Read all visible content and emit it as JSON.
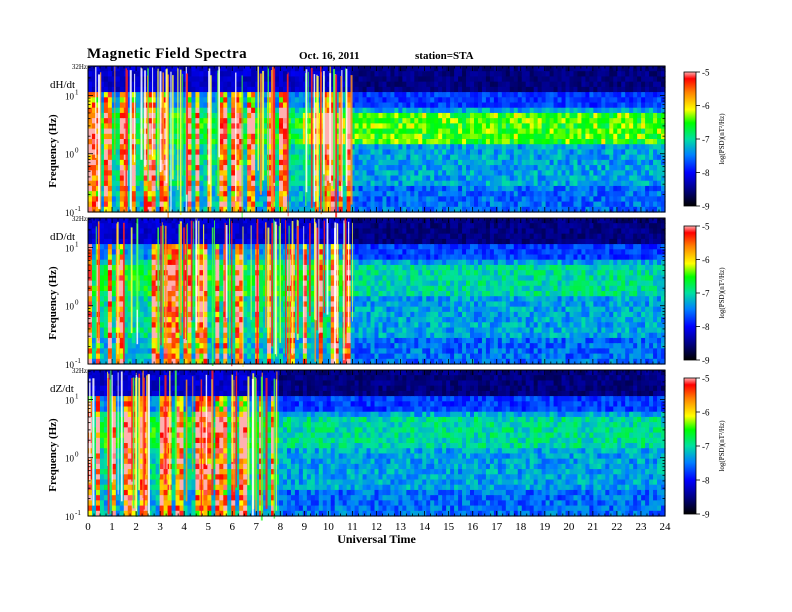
{
  "header": {
    "title": "Magnetic Field Spectra",
    "date": "Oct. 16, 2011",
    "station": "station=STA"
  },
  "chart_data": [
    {
      "type": "heatmap",
      "panel_label": "dH/dt",
      "ylabel": "Frequency (Hz)",
      "xlim": [
        0,
        24
      ],
      "ylim": [
        0.1,
        32
      ],
      "yscale": "log",
      "y_ticks": [
        {
          "value": 32,
          "label": "32Hz"
        },
        {
          "value": 10,
          "label": "10",
          "exponent": "1"
        },
        {
          "value": 1,
          "label": "10",
          "exponent": "0"
        },
        {
          "value": 0.1,
          "label": "10",
          "exponent": "-1"
        }
      ],
      "activity": {
        "noisy_until_hour": 11,
        "strong_band_low_hz": 1.5,
        "strong_band_high_hz": 5,
        "band_hours": [
          9,
          24
        ]
      },
      "colorbar": {
        "range": [
          -9,
          -5
        ],
        "ticks": [
          "-5",
          "-6",
          "-7",
          "-8",
          "-9"
        ],
        "label": "log(PSD)(nT²/Hz)"
      }
    },
    {
      "type": "heatmap",
      "panel_label": "dD/dt",
      "ylabel": "Frequency (Hz)",
      "xlim": [
        0,
        24
      ],
      "ylim": [
        0.1,
        32
      ],
      "yscale": "log",
      "y_ticks": [
        {
          "value": 32,
          "label": "32Hz"
        },
        {
          "value": 10,
          "label": "10",
          "exponent": "1"
        },
        {
          "value": 1,
          "label": "10",
          "exponent": "0"
        },
        {
          "value": 0.1,
          "label": "10",
          "exponent": "-1"
        }
      ],
      "activity": {
        "noisy_until_hour": 11,
        "strong_band_low_hz": 1.5,
        "strong_band_high_hz": 5,
        "band_hours": []
      },
      "colorbar": {
        "range": [
          -9,
          -5
        ],
        "ticks": [
          "-5",
          "-6",
          "-7",
          "-8",
          "-9"
        ],
        "label": "log(PSD)(nT²/Hz)"
      }
    },
    {
      "type": "heatmap",
      "panel_label": "dZ/dt",
      "ylabel": "Frequency (Hz)",
      "xlabel": "Universal Time",
      "xlim": [
        0,
        24
      ],
      "ylim": [
        0.1,
        32
      ],
      "yscale": "log",
      "x_ticks": [
        "0",
        "1",
        "2",
        "3",
        "4",
        "5",
        "6",
        "7",
        "8",
        "9",
        "10",
        "11",
        "12",
        "13",
        "14",
        "15",
        "16",
        "17",
        "18",
        "19",
        "20",
        "21",
        "22",
        "23",
        "24"
      ],
      "y_ticks": [
        {
          "value": 32,
          "label": "32Hz"
        },
        {
          "value": 10,
          "label": "10",
          "exponent": "1"
        },
        {
          "value": 1,
          "label": "10",
          "exponent": "0"
        },
        {
          "value": 0.1,
          "label": "10",
          "exponent": "-1"
        }
      ],
      "activity": {
        "noisy_until_hour": 8,
        "strong_band_low_hz": 1.5,
        "strong_band_high_hz": 5,
        "band_hours": []
      },
      "colorbar": {
        "range": [
          -9,
          -5
        ],
        "ticks": [
          "-5",
          "-6",
          "-7",
          "-8",
          "-9"
        ],
        "label": "log(PSD)(nT²/Hz)"
      }
    }
  ]
}
